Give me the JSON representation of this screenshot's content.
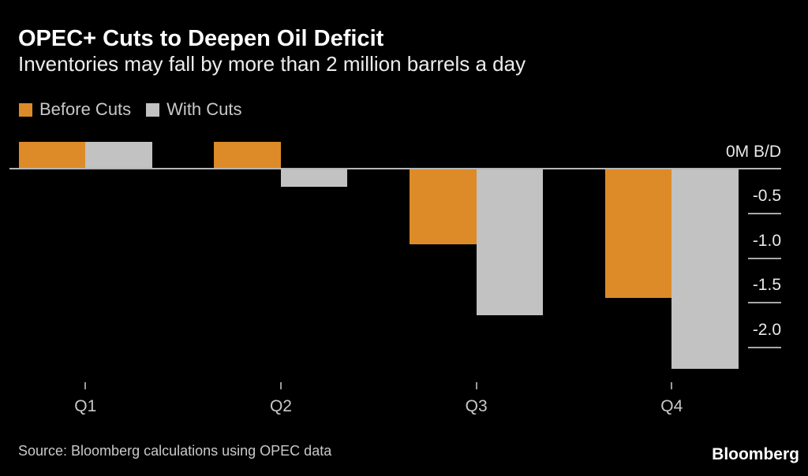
{
  "page": {
    "background_color": "#000000"
  },
  "header": {
    "title": "OPEC+ Cuts to Deepen Oil Deficit",
    "subtitle": "Inventories may fall by more than 2 million barrels a day"
  },
  "chart_data": {
    "type": "bar",
    "title": "OPEC+ Cuts to Deepen Oil Deficit",
    "subtitle": "Inventories may fall by more than 2 million barrels a day",
    "unit": "M B/D",
    "categories": [
      "Q1",
      "Q2",
      "Q3",
      "Q4"
    ],
    "series": [
      {
        "name": "Before Cuts",
        "color": "#DD8B28",
        "values": [
          0.3,
          0.3,
          -0.85,
          -1.45
        ]
      },
      {
        "name": "With Cuts",
        "color": "#C2C2C2",
        "values": [
          0.3,
          -0.2,
          -1.65,
          -2.25
        ]
      }
    ],
    "y_axis": {
      "side": "right",
      "zero_label": "0M B/D",
      "ticks": [
        {
          "label": "-0.5",
          "value": -0.5
        },
        {
          "label": "-1.0",
          "value": -1.0
        },
        {
          "label": "-1.5",
          "value": -1.5
        },
        {
          "label": "-2.0",
          "value": -2.0
        }
      ],
      "ylim": [
        -2.45,
        0.45
      ]
    },
    "legend_position": "top-left",
    "grid": "off",
    "baseline_color": "#B5B5B5"
  },
  "footer": {
    "source": "Source: Bloomberg calculations using OPEC data",
    "brand": "Bloomberg"
  }
}
